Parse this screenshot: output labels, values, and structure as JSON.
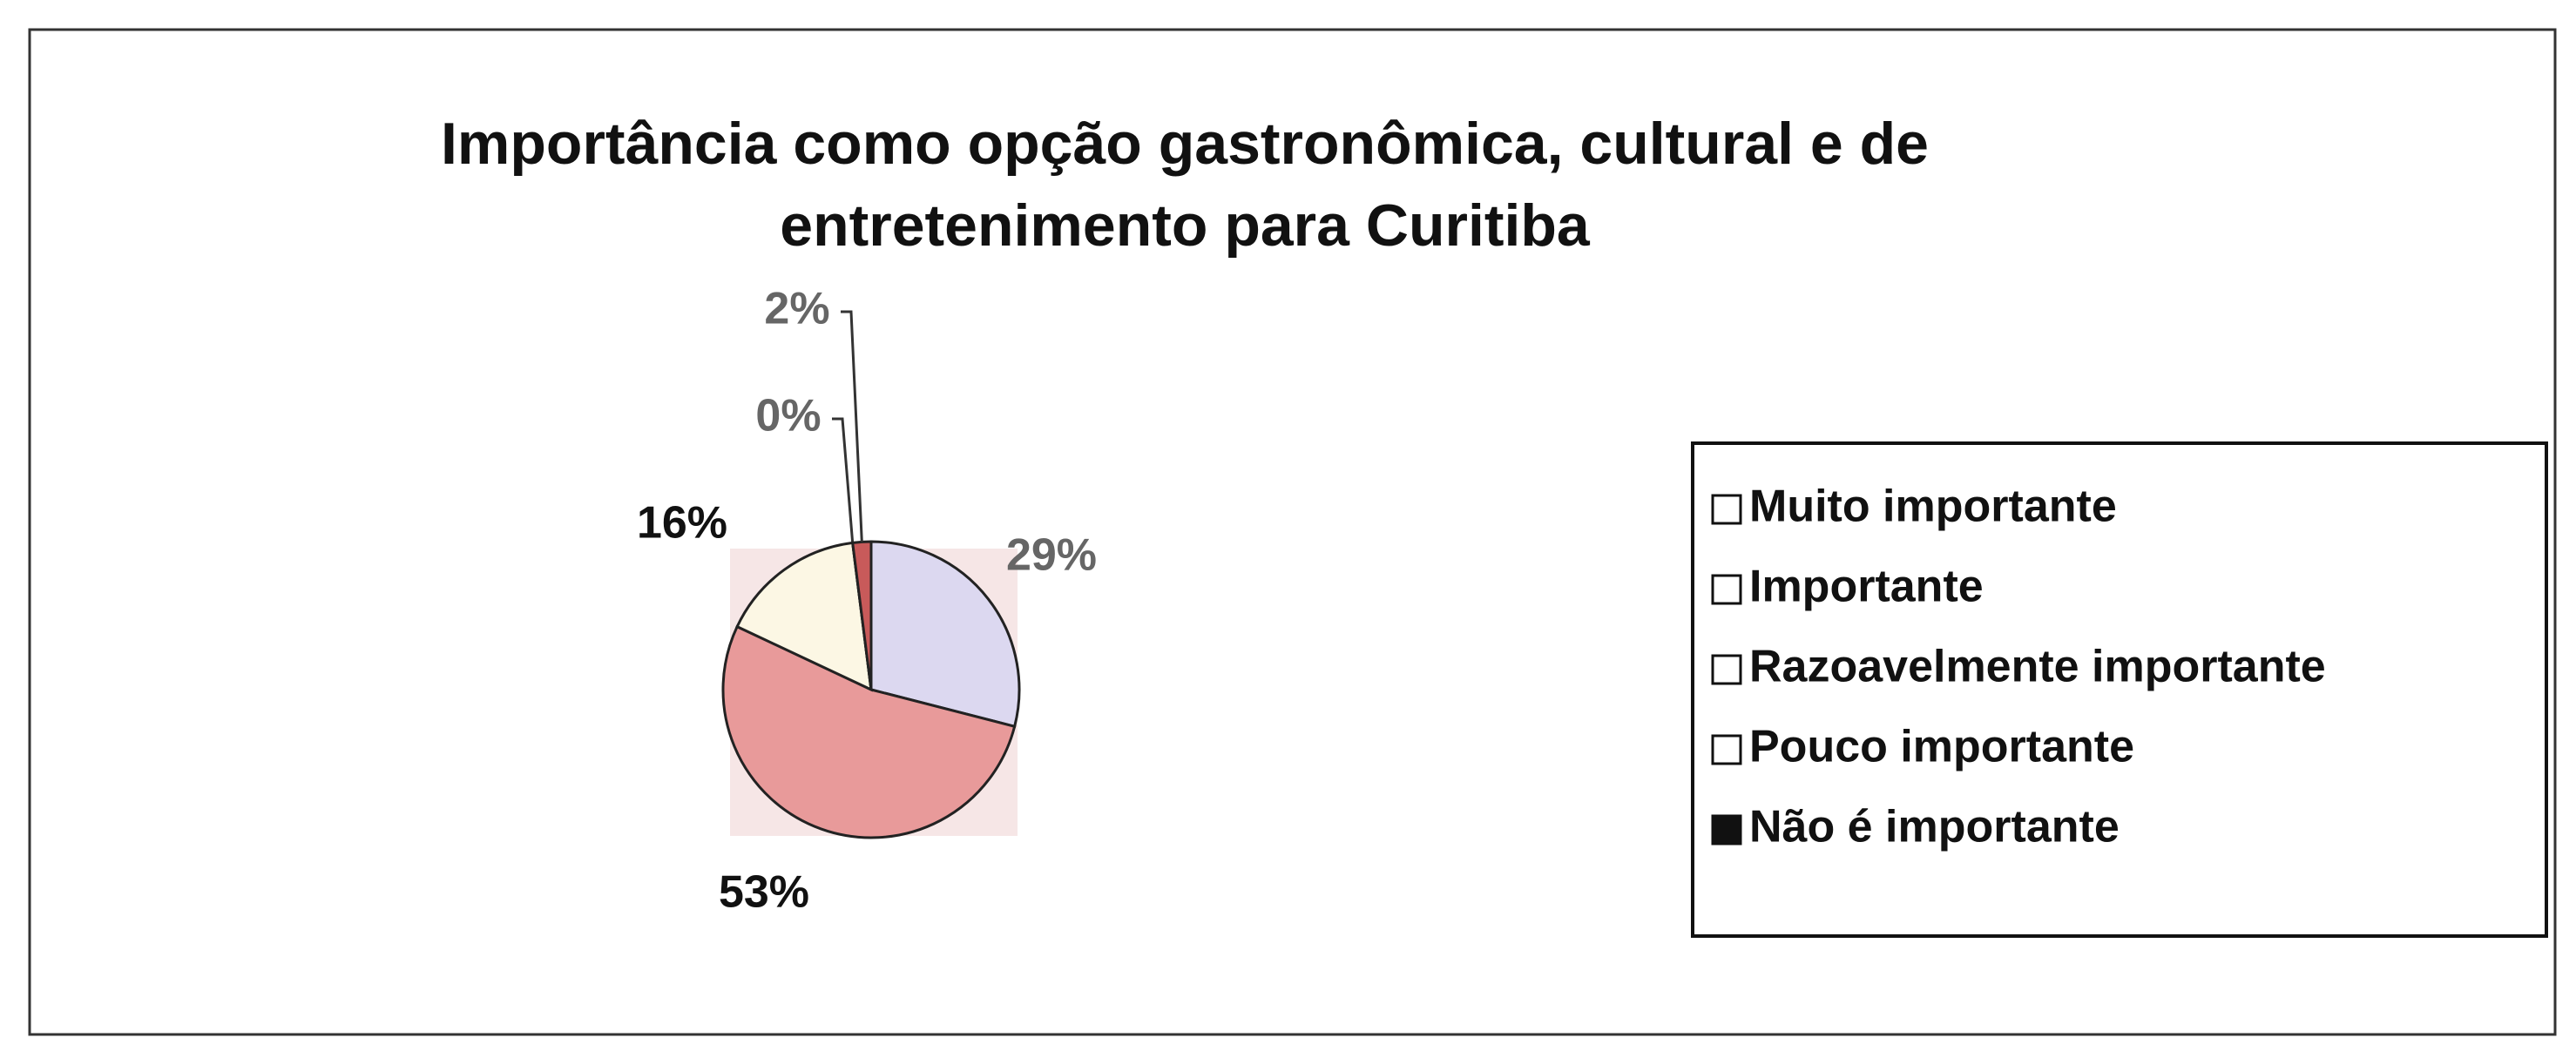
{
  "chart_data": {
    "type": "pie",
    "title": "Importância como opção gastronômica, cultural e de entretenimento para Curitiba",
    "categories": [
      "Muito importante",
      "Importante",
      "Razoavelmente importante",
      "Pouco importante",
      "Não é importante"
    ],
    "values": [
      29,
      53,
      16,
      0,
      2
    ],
    "value_labels": [
      "29%",
      "53%",
      "16%",
      "0%",
      "2%"
    ],
    "colors": [
      "#dcd8f0",
      "#e89a9a",
      "#fcf7e4",
      "#ffffff",
      "#c85a5a"
    ],
    "legend": "right"
  }
}
